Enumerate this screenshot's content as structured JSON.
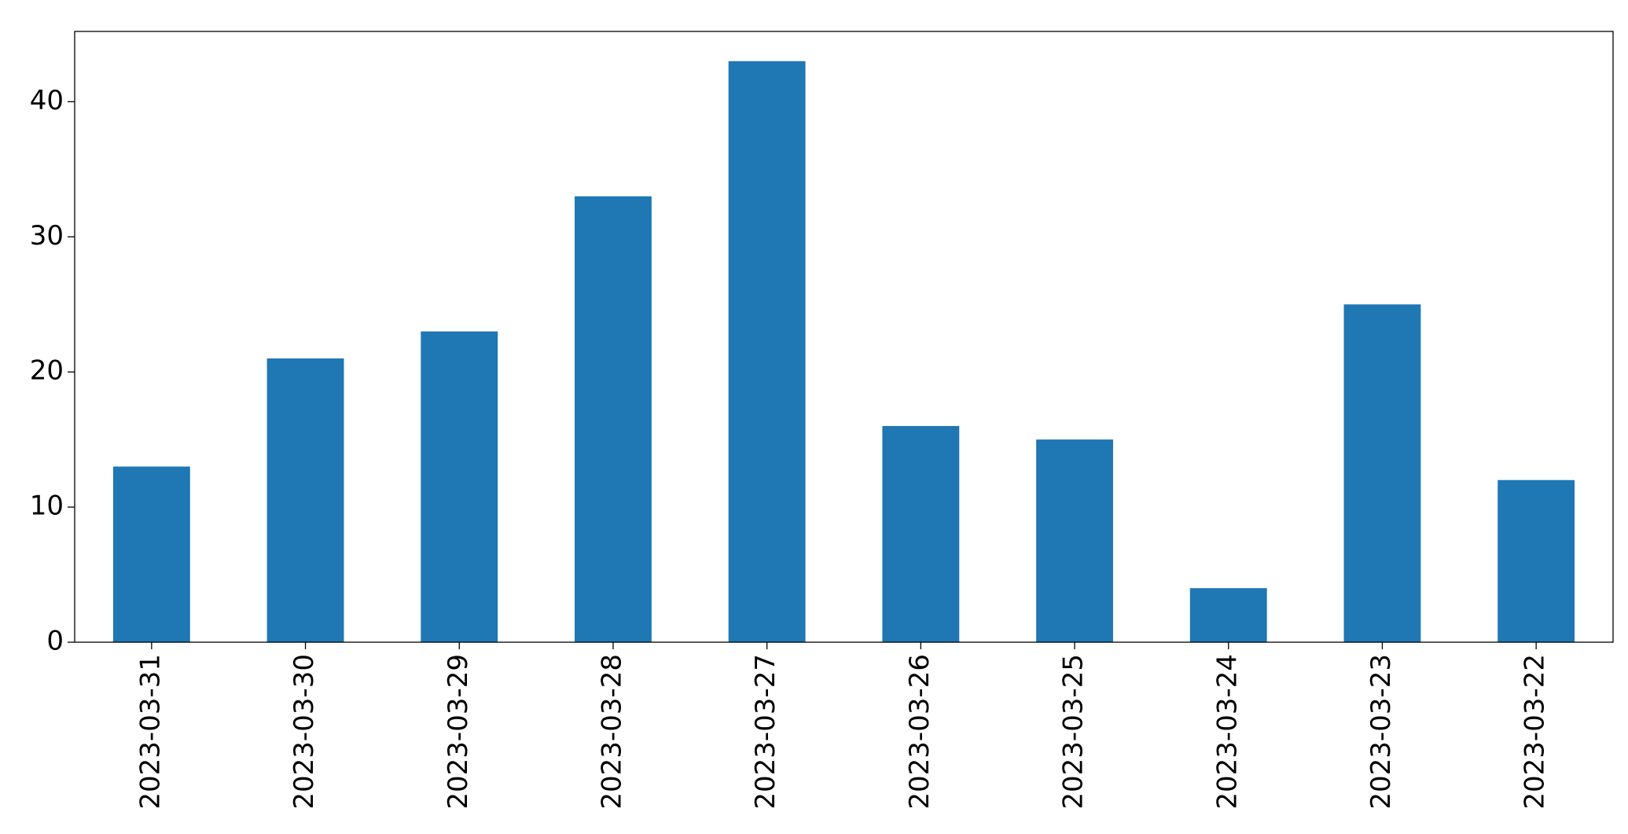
{
  "chart_data": {
    "type": "bar",
    "categories": [
      "2023-03-31",
      "2023-03-30",
      "2023-03-29",
      "2023-03-28",
      "2023-03-27",
      "2023-03-26",
      "2023-03-25",
      "2023-03-24",
      "2023-03-23",
      "2023-03-22"
    ],
    "values": [
      13,
      21,
      23,
      33,
      43,
      16,
      15,
      4,
      25,
      12
    ],
    "color": "#1f77b4",
    "ylim": [
      0,
      45.2
    ],
    "yticks": [
      0,
      10,
      20,
      30,
      40
    ]
  }
}
